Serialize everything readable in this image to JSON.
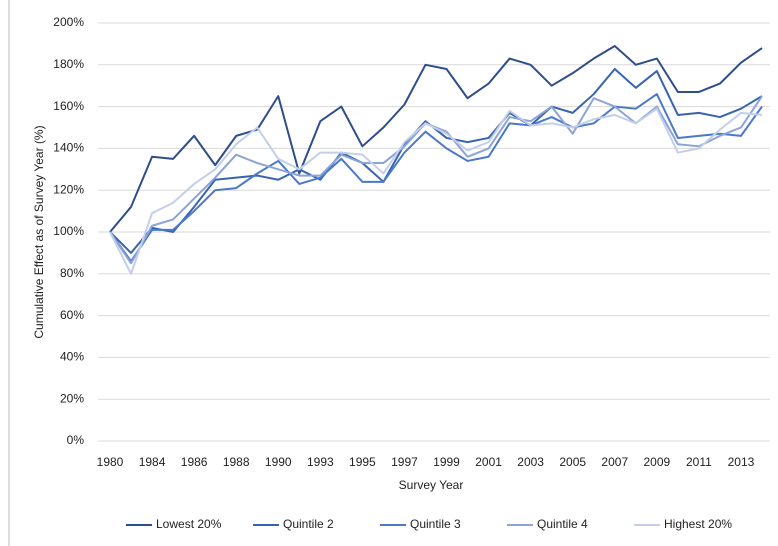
{
  "chart_data": {
    "type": "line",
    "x_label": "Survey Year",
    "y_label": "Cumulative Effect as of Survey Year  (%)",
    "categories": [
      "1980",
      null,
      "1984",
      null,
      "1986",
      null,
      "1988",
      null,
      "1990",
      null,
      "1993",
      null,
      "1995",
      null,
      "1997",
      null,
      "1999",
      null,
      "2001",
      null,
      "2003",
      null,
      "2005",
      null,
      "2007",
      null,
      "2009",
      null,
      "2011",
      null,
      "2013",
      null
    ],
    "ylim": [
      0,
      200
    ],
    "yticks": [
      {
        "value": 0,
        "label": "0%"
      },
      {
        "value": 20,
        "label": "20%"
      },
      {
        "value": 40,
        "label": "40%"
      },
      {
        "value": 60,
        "label": "60%"
      },
      {
        "value": 80,
        "label": "80%"
      },
      {
        "value": 100,
        "label": "100%"
      },
      {
        "value": 120,
        "label": "120%"
      },
      {
        "value": 140,
        "label": "140%"
      },
      {
        "value": 160,
        "label": "160%"
      },
      {
        "value": 180,
        "label": "180%"
      },
      {
        "value": 200,
        "label": "200%"
      }
    ],
    "grid": true,
    "legend": "bottom",
    "series": [
      {
        "name": "Lowest 20%",
        "color": "#2e4d8c",
        "values": [
          100,
          112,
          136,
          135,
          146,
          132,
          146,
          149,
          165,
          128,
          153,
          160,
          141,
          150,
          161,
          180,
          178,
          164,
          171,
          183,
          180,
          170,
          176,
          183,
          189,
          180,
          183,
          167,
          167,
          171,
          181,
          188
        ]
      },
      {
        "name": "Quintile 2",
        "color": "#3763b0",
        "values": [
          100,
          90,
          102,
          100,
          112,
          125,
          126,
          127,
          125,
          130,
          125,
          138,
          133,
          124,
          142,
          153,
          145,
          143,
          145,
          157,
          151,
          160,
          157,
          166,
          178,
          169,
          177,
          156,
          157,
          155,
          159,
          165
        ]
      },
      {
        "name": "Quintile 3",
        "color": "#4b78cc",
        "values": [
          100,
          86,
          101,
          101,
          110,
          120,
          121,
          128,
          134,
          123,
          126,
          135,
          124,
          124,
          138,
          148,
          140,
          134,
          136,
          152,
          151,
          155,
          150,
          152,
          160,
          159,
          166,
          145,
          146,
          147,
          146,
          160
        ]
      },
      {
        "name": "Quintile 4",
        "color": "#8ba3d9",
        "values": [
          100,
          85,
          103,
          106,
          116,
          126,
          137,
          133,
          130,
          127,
          127,
          137,
          133,
          133,
          141,
          152,
          148,
          136,
          140,
          155,
          153,
          160,
          147,
          164,
          160,
          152,
          160,
          142,
          141,
          146,
          150,
          165
        ]
      },
      {
        "name": "Highest 20%",
        "color": "#c3cfea",
        "values": [
          100,
          80,
          109,
          114,
          123,
          130,
          142,
          150,
          135,
          130,
          138,
          138,
          137,
          128,
          143,
          152,
          147,
          139,
          143,
          158,
          151,
          152,
          150,
          154,
          156,
          152,
          159,
          138,
          140,
          149,
          157,
          156
        ]
      }
    ]
  }
}
